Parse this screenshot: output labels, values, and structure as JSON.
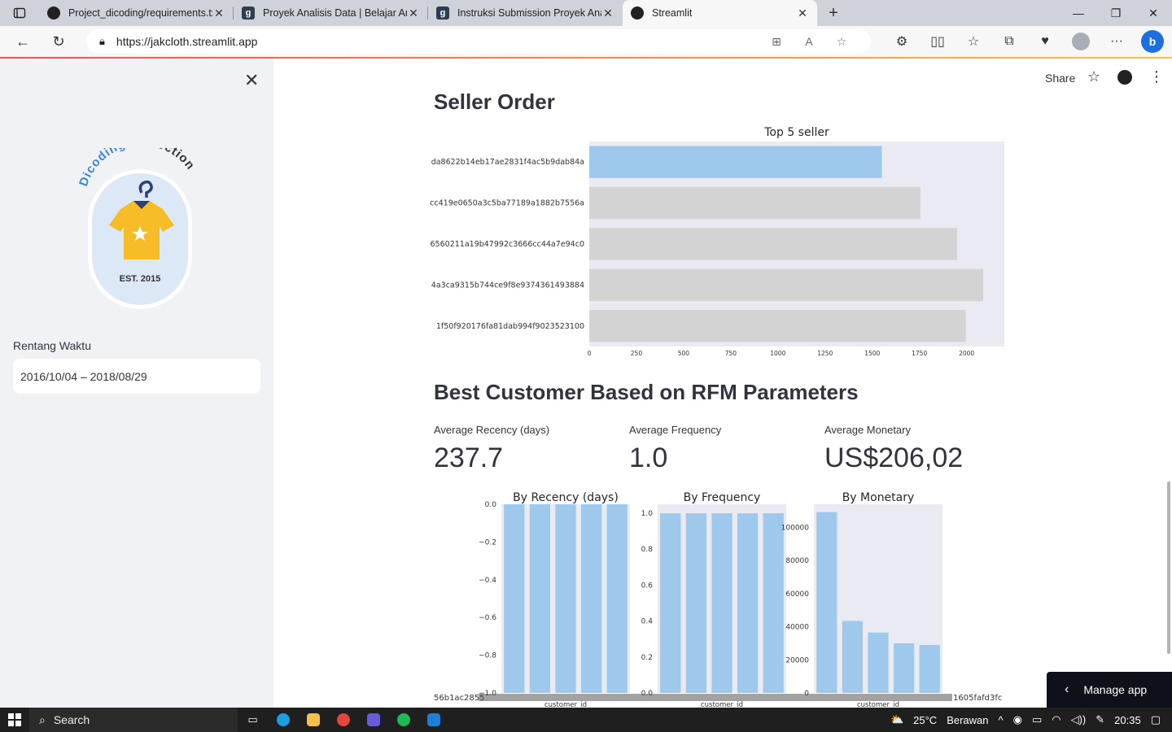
{
  "browser": {
    "tabs": [
      {
        "label": "Project_dicoding/requirements.tx",
        "icon": "github-icon",
        "active": false
      },
      {
        "label": "Proyek Analisis Data | Belajar Ana",
        "icon": "dicoding-icon",
        "active": false
      },
      {
        "label": "Instruksi Submission Proyek Anal",
        "icon": "dicoding-icon",
        "active": false
      },
      {
        "label": "Streamlit",
        "icon": "streamlit-icon",
        "active": true
      }
    ],
    "url": "https://jakcloth.streamlit.app"
  },
  "sidebar": {
    "logo": {
      "arc_text": "Dicoding Collection",
      "est_text": "EST. 2015"
    },
    "date_label": "Rentang Waktu",
    "date_value": "2016/10/04 – 2018/08/29"
  },
  "header": {
    "share_label": "Share"
  },
  "seller_section": {
    "title": "Seller Order"
  },
  "rfm_section": {
    "title": "Best Customer Based on RFM Parameters",
    "metrics": [
      {
        "label": "Average Recency (days)",
        "value": "237.7"
      },
      {
        "label": "Average Frequency",
        "value": "1.0"
      },
      {
        "label": "Average Monetary",
        "value": "US$206,02"
      }
    ]
  },
  "manage_app": {
    "label": "Manage app"
  },
  "taskbar": {
    "search_label": "Search",
    "weather": "25°C",
    "weather_desc": "Berawan",
    "time": "20:35"
  },
  "chart_data": [
    {
      "type": "bar",
      "orientation": "horizontal",
      "title": "Top 5 seller",
      "categories": [
        "da8622b14eb17ae2831f4ac5b9dab84a",
        "cc419e0650a3c5ba77189a1882b7556a",
        "6560211a19b47992c3666cc44a7e94c0",
        "4a3ca9315b744ce9f8e9374361493884",
        "1f50f920176fa81dab994f9023523100"
      ],
      "values": [
        1551,
        1755,
        1950,
        2088,
        1996
      ],
      "highlight_color": "#9fc9ec",
      "other_color": "#d3d3d3",
      "xlim": [
        0,
        2200
      ],
      "xticks": [
        0,
        250,
        500,
        750,
        1000,
        1250,
        1500,
        1750,
        2000
      ],
      "xlabel": "",
      "ylabel": ""
    },
    {
      "type": "bar",
      "title": "By Recency (days)",
      "categories": [
        "56b1ac2855",
        "",
        "",
        "",
        ""
      ],
      "values": [
        -1,
        -1,
        -1,
        -1,
        -1
      ],
      "ylim": [
        -1.0,
        0.0
      ],
      "yticks": [
        "0.0",
        "−0.2",
        "−0.4",
        "−0.6",
        "−0.8",
        "−1.0"
      ],
      "xlabel": "customer_id"
    },
    {
      "type": "bar",
      "title": "By Frequency",
      "categories": [
        "",
        "",
        "",
        "",
        ""
      ],
      "values": [
        1,
        1,
        1,
        1,
        1
      ],
      "ylim": [
        0,
        1.05
      ],
      "yticks": [
        "0.0",
        "0.2",
        "0.4",
        "0.6",
        "0.8",
        "1.0"
      ],
      "xlabel": "customer_id"
    },
    {
      "type": "bar",
      "title": "By Monetary",
      "categories": [
        "",
        "",
        "",
        "",
        "1605fafd3fc"
      ],
      "values": [
        109300,
        43500,
        36500,
        30000,
        29000
      ],
      "ylim": [
        0,
        114000
      ],
      "yticks": [
        "0",
        "20000",
        "40000",
        "60000",
        "80000",
        "100000"
      ],
      "xlabel": "customer_id"
    }
  ]
}
